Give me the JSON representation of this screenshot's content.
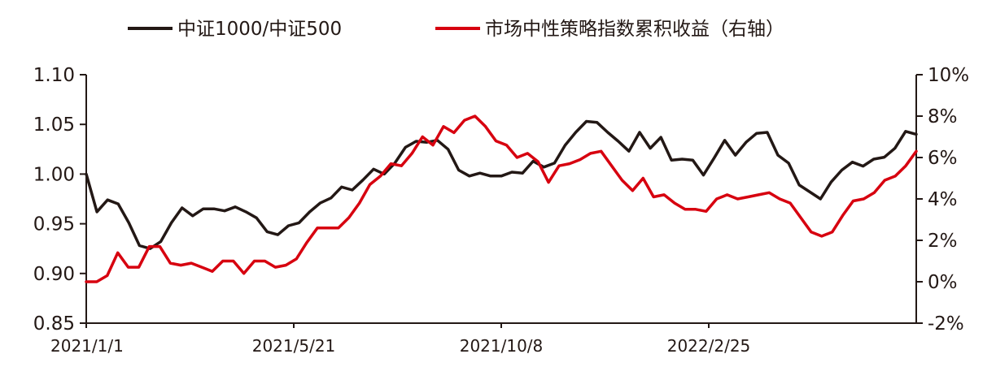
{
  "chart_data": {
    "type": "line",
    "title": "",
    "xlabel": "",
    "ylabel": "",
    "x_tick_labels": [
      "2021/1/1",
      "2021/5/21",
      "2021/10/8",
      "2022/2/25"
    ],
    "y_left": {
      "ylim": [
        0.85,
        1.1
      ],
      "tick_labels": [
        "0.85",
        "0.90",
        "0.95",
        "1.00",
        "1.05",
        "1.10"
      ]
    },
    "y_right": {
      "ylim": [
        -2,
        10
      ],
      "unit": "%",
      "tick_labels": [
        "-2%",
        "0%",
        "2%",
        "4%",
        "6%",
        "8%",
        "10%"
      ]
    },
    "legend": {
      "placement": "top"
    },
    "grid": false,
    "series": [
      {
        "name": "中证1000/中证500",
        "axis": "left",
        "color": "#231815",
        "values": [
          1.0,
          0.962,
          0.974,
          0.97,
          0.951,
          0.928,
          0.925,
          0.932,
          0.951,
          0.966,
          0.958,
          0.965,
          0.965,
          0.963,
          0.967,
          0.962,
          0.956,
          0.942,
          0.939,
          0.948,
          0.951,
          0.962,
          0.971,
          0.976,
          0.987,
          0.984,
          0.994,
          1.005,
          1.0,
          1.011,
          1.027,
          1.033,
          1.032,
          1.034,
          1.025,
          1.004,
          0.998,
          1.001,
          0.998,
          0.998,
          1.002,
          1.001,
          1.013,
          1.007,
          1.011,
          1.029,
          1.042,
          1.053,
          1.052,
          1.042,
          1.033,
          1.023,
          1.042,
          1.026,
          1.037,
          1.014,
          1.015,
          1.014,
          0.999,
          1.016,
          1.034,
          1.019,
          1.032,
          1.041,
          1.042,
          1.019,
          1.011,
          0.989,
          0.982,
          0.975,
          0.992,
          1.004,
          1.012,
          1.008,
          1.015,
          1.017,
          1.026,
          1.043,
          1.04
        ]
      },
      {
        "name": "市场中性策略指数累积收益（右轴）",
        "axis": "right",
        "color": "#d7000f",
        "values": [
          0.0,
          0.0,
          0.3,
          1.4,
          0.7,
          0.7,
          1.7,
          1.7,
          0.9,
          0.8,
          0.9,
          0.7,
          0.5,
          1.0,
          1.0,
          0.4,
          1.0,
          1.0,
          0.7,
          0.8,
          1.1,
          1.9,
          2.6,
          2.6,
          2.6,
          3.1,
          3.8,
          4.7,
          5.1,
          5.7,
          5.6,
          6.2,
          7.0,
          6.6,
          7.5,
          7.2,
          7.8,
          8.0,
          7.5,
          6.8,
          6.6,
          6.0,
          6.2,
          5.8,
          4.8,
          5.6,
          5.7,
          5.9,
          6.2,
          6.3,
          5.6,
          4.9,
          4.4,
          5.0,
          4.1,
          4.2,
          3.8,
          3.5,
          3.5,
          3.4,
          4.0,
          4.2,
          4.0,
          4.1,
          4.2,
          4.3,
          4.0,
          3.8,
          3.1,
          2.4,
          2.2,
          2.4,
          3.2,
          3.9,
          4.0,
          4.3,
          4.9,
          5.1,
          5.6,
          6.3
        ]
      }
    ]
  }
}
